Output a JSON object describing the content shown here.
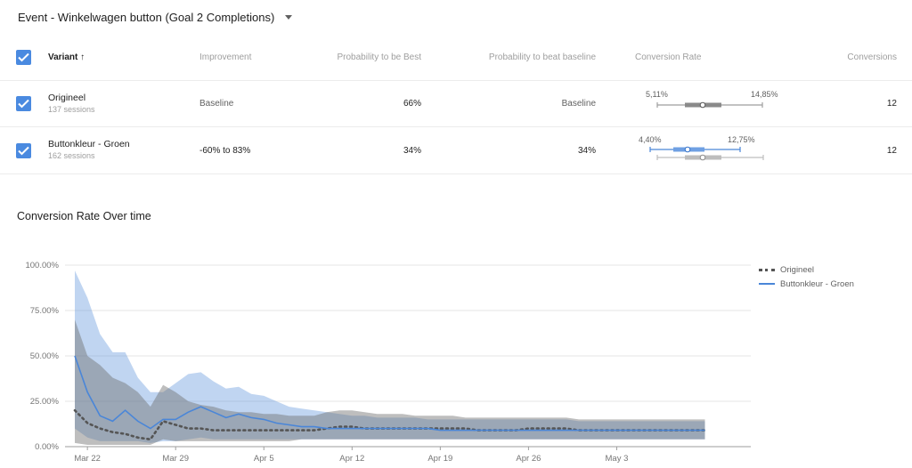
{
  "header": {
    "event_selector": "Event - Winkelwagen button (Goal 2 Completions)"
  },
  "table": {
    "columns": [
      "Variant",
      "Improvement",
      "Probability to be Best",
      "Probability to beat baseline",
      "Conversion Rate",
      "Conversions"
    ],
    "rows": [
      {
        "name": "Origineel",
        "sessions": "137 sessions",
        "improvement": "Baseline",
        "prob_best": "66%",
        "prob_beat": "Baseline",
        "cr_low": "5,11%",
        "cr_high": "14,85%",
        "conversions": "12"
      },
      {
        "name": "Buttonkleur - Groen",
        "sessions": "162 sessions",
        "improvement": "-60% to 83%",
        "prob_best": "34%",
        "prob_beat": "34%",
        "cr_low": "4,40%",
        "cr_high": "12,75%",
        "conversions": "12"
      }
    ]
  },
  "chart_title": "Conversion Rate Over time",
  "chart_data": {
    "type": "line",
    "title": "Conversion Rate Over time",
    "ylim": [
      0,
      100
    ],
    "y_ticks": [
      "100.00%",
      "75.00%",
      "50.00%",
      "25.00%",
      "0.00%"
    ],
    "x_tick_labels": [
      "Mar 22",
      "Mar 29",
      "Apr 5",
      "Apr 12",
      "Apr 19",
      "Apr 26",
      "May 3"
    ],
    "x_tick_days": [
      1,
      8,
      15,
      22,
      29,
      36,
      43
    ],
    "x_days": [
      0,
      1,
      2,
      3,
      4,
      5,
      6,
      7,
      8,
      9,
      10,
      11,
      12,
      13,
      14,
      15,
      16,
      17,
      18,
      19,
      20,
      21,
      22,
      23,
      24,
      25,
      26,
      27,
      28,
      29,
      30,
      31,
      32,
      33,
      34,
      35,
      36,
      37,
      38,
      39,
      40,
      41,
      42,
      43,
      44,
      45,
      46,
      47,
      48,
      49,
      50
    ],
    "series": [
      {
        "name": "Origineel",
        "color": "#555555",
        "style": "dotted",
        "values": [
          20,
          13,
          10,
          8,
          7,
          5,
          4,
          14,
          12,
          10,
          10,
          9,
          9,
          9,
          9,
          9,
          9,
          9,
          9,
          9,
          10,
          11,
          11,
          10,
          10,
          10,
          10,
          10,
          10,
          10,
          10,
          10,
          9,
          9,
          9,
          9,
          10,
          10,
          10,
          10,
          9,
          9,
          9,
          9,
          9,
          9,
          9,
          9,
          9,
          9,
          9
        ],
        "upper": [
          70,
          50,
          45,
          38,
          35,
          30,
          22,
          34,
          30,
          25,
          23,
          22,
          20,
          19,
          19,
          18,
          18,
          17,
          17,
          17,
          19,
          20,
          20,
          19,
          18,
          18,
          18,
          17,
          17,
          17,
          17,
          16,
          16,
          16,
          16,
          16,
          16,
          16,
          16,
          16,
          15,
          15,
          15,
          15,
          15,
          15,
          15,
          15,
          15,
          15,
          15
        ],
        "lower": [
          2,
          1,
          1,
          1,
          1,
          1,
          1,
          4,
          3,
          3,
          3,
          3,
          3,
          3,
          3,
          3,
          3,
          3,
          4,
          4,
          4,
          4,
          4,
          4,
          4,
          4,
          4,
          4,
          4,
          4,
          4,
          4,
          4,
          4,
          4,
          4,
          4,
          4,
          4,
          4,
          4,
          4,
          4,
          4,
          4,
          4,
          4,
          4,
          4,
          4,
          4
        ]
      },
      {
        "name": "Buttonkleur - Groen",
        "color": "#4a86d8",
        "style": "solid",
        "values": [
          50,
          30,
          17,
          14,
          20,
          14,
          10,
          15,
          15,
          19,
          22,
          19,
          16,
          18,
          16,
          15,
          13,
          12,
          11,
          11,
          10,
          10,
          10,
          10,
          10,
          10,
          10,
          10,
          10,
          9,
          9,
          9,
          9,
          9,
          9,
          9,
          9,
          9,
          9,
          9,
          9,
          9,
          9,
          9,
          9,
          9,
          9,
          9,
          9,
          9,
          9
        ],
        "upper": [
          97,
          82,
          62,
          52,
          52,
          38,
          30,
          30,
          35,
          40,
          41,
          36,
          32,
          33,
          29,
          28,
          25,
          22,
          21,
          20,
          19,
          18,
          17,
          17,
          16,
          16,
          16,
          16,
          15,
          15,
          15,
          15,
          15,
          15,
          15,
          15,
          15,
          15,
          15,
          15,
          14,
          14,
          14,
          14,
          14,
          14,
          14,
          14,
          14,
          14,
          14
        ],
        "lower": [
          10,
          5,
          3,
          3,
          3,
          3,
          2,
          3,
          3,
          4,
          5,
          4,
          4,
          4,
          4,
          4,
          4,
          4,
          4,
          4,
          4,
          4,
          4,
          4,
          4,
          4,
          4,
          4,
          4,
          4,
          4,
          4,
          4,
          4,
          4,
          4,
          4,
          4,
          4,
          4,
          4,
          4,
          4,
          4,
          4,
          4,
          4,
          4,
          4,
          4,
          4
        ]
      }
    ],
    "legend_position": "right",
    "grid": true
  }
}
